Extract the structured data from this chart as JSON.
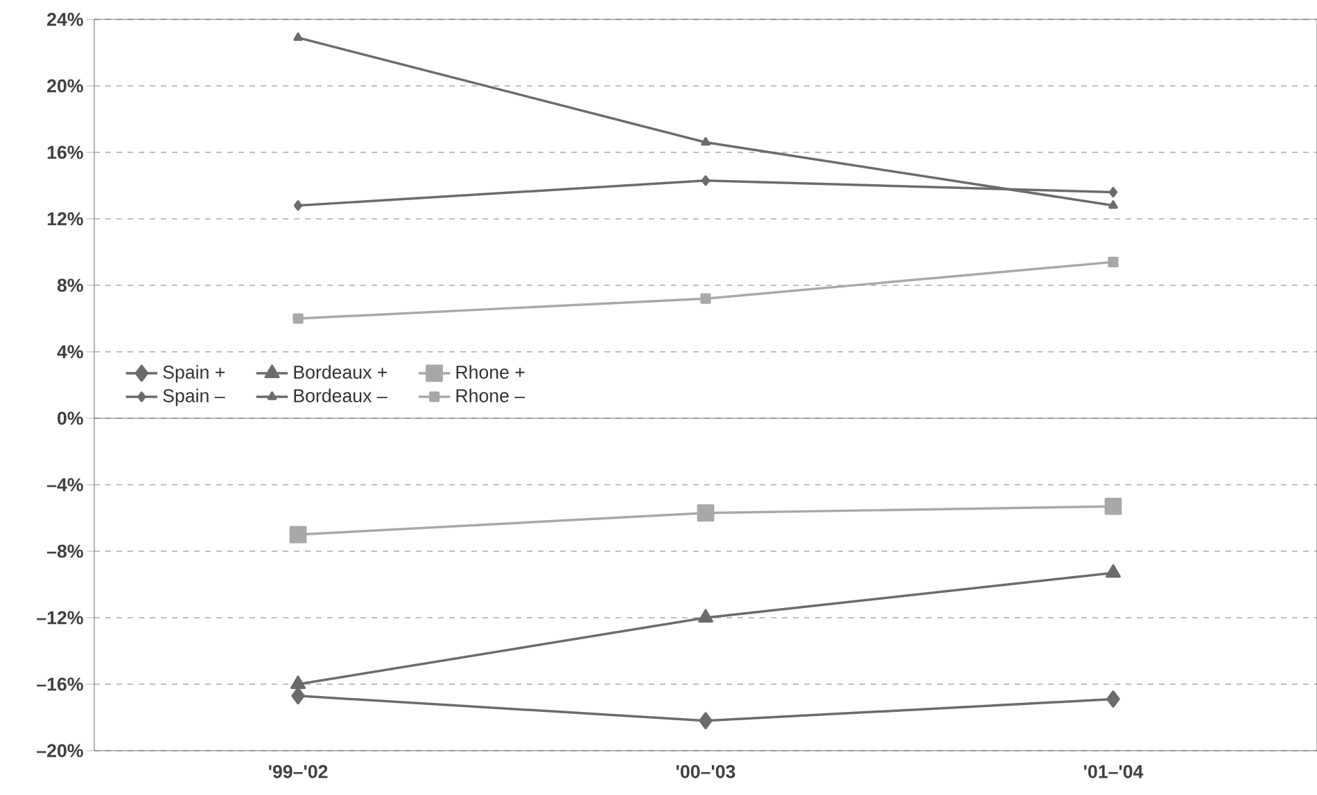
{
  "chart_data": {
    "type": "line",
    "categories": [
      "'99–'02",
      "'00–'03",
      "'01–'04"
    ],
    "series": [
      {
        "name": "Spain +",
        "color": "#6b6b6b",
        "marker": "diamond",
        "values": [
          -16.7,
          -18.2,
          -16.9
        ]
      },
      {
        "name": "Bordeaux +",
        "color": "#6b6b6b",
        "marker": "triangle",
        "values": [
          -16.0,
          -12.0,
          -9.3
        ]
      },
      {
        "name": "Rhone +",
        "color": "#a8a8a8",
        "marker": "square",
        "values": [
          -7.0,
          -5.7,
          -5.3
        ]
      },
      {
        "name": "Spain –",
        "color": "#6b6b6b",
        "marker": "diamond",
        "values": [
          12.8,
          14.3,
          13.6
        ]
      },
      {
        "name": "Bordeaux –",
        "color": "#6b6b6b",
        "marker": "triangle",
        "values": [
          22.9,
          16.6,
          12.8
        ]
      },
      {
        "name": "Rhone –",
        "color": "#a8a8a8",
        "marker": "square",
        "values": [
          6.0,
          7.2,
          9.4
        ]
      }
    ],
    "ylim": [
      -20,
      24
    ],
    "yticks": [
      {
        "value": -20,
        "label": "–20%"
      },
      {
        "value": -16,
        "label": "–16%"
      },
      {
        "value": -12,
        "label": "–12%"
      },
      {
        "value": -8,
        "label": "–8%"
      },
      {
        "value": -4,
        "label": "–4%"
      },
      {
        "value": 0,
        "label": "0%"
      },
      {
        "value": 4,
        "label": "4%"
      },
      {
        "value": 8,
        "label": "8%"
      },
      {
        "value": 12,
        "label": "12%"
      },
      {
        "value": 16,
        "label": "16%"
      },
      {
        "value": 20,
        "label": "20%"
      },
      {
        "value": 24,
        "label": "24%"
      }
    ],
    "grid": "y",
    "legend": "left",
    "line_style": "solid"
  }
}
